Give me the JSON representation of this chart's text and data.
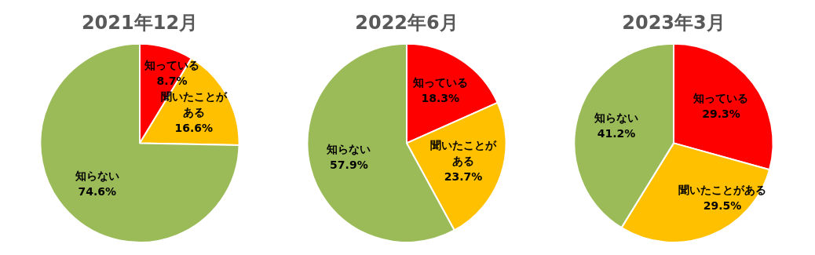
{
  "chart_data": [
    {
      "type": "pie",
      "title": "2021年12月",
      "categories": [
        "知っている",
        "聞いたことがある",
        "知らない"
      ],
      "values": [
        8.7,
        16.6,
        74.6
      ],
      "value_labels": [
        "8.7%",
        "16.6%",
        "74.6%"
      ],
      "colors": [
        "#ff0000",
        "#ffc000",
        "#9bbb59"
      ]
    },
    {
      "type": "pie",
      "title": "2022年6月",
      "categories": [
        "知っている",
        "聞いたことがある",
        "知らない"
      ],
      "values": [
        18.3,
        23.7,
        57.9
      ],
      "value_labels": [
        "18.3%",
        "23.7%",
        "57.9%"
      ],
      "colors": [
        "#ff0000",
        "#ffc000",
        "#9bbb59"
      ]
    },
    {
      "type": "pie",
      "title": "2023年3月",
      "categories": [
        "知っている",
        "聞いたことがある",
        "知らない"
      ],
      "values": [
        29.3,
        29.5,
        41.2
      ],
      "value_labels": [
        "29.3%",
        "29.5%",
        "41.2%"
      ],
      "colors": [
        "#ff0000",
        "#ffc000",
        "#9bbb59"
      ]
    }
  ]
}
